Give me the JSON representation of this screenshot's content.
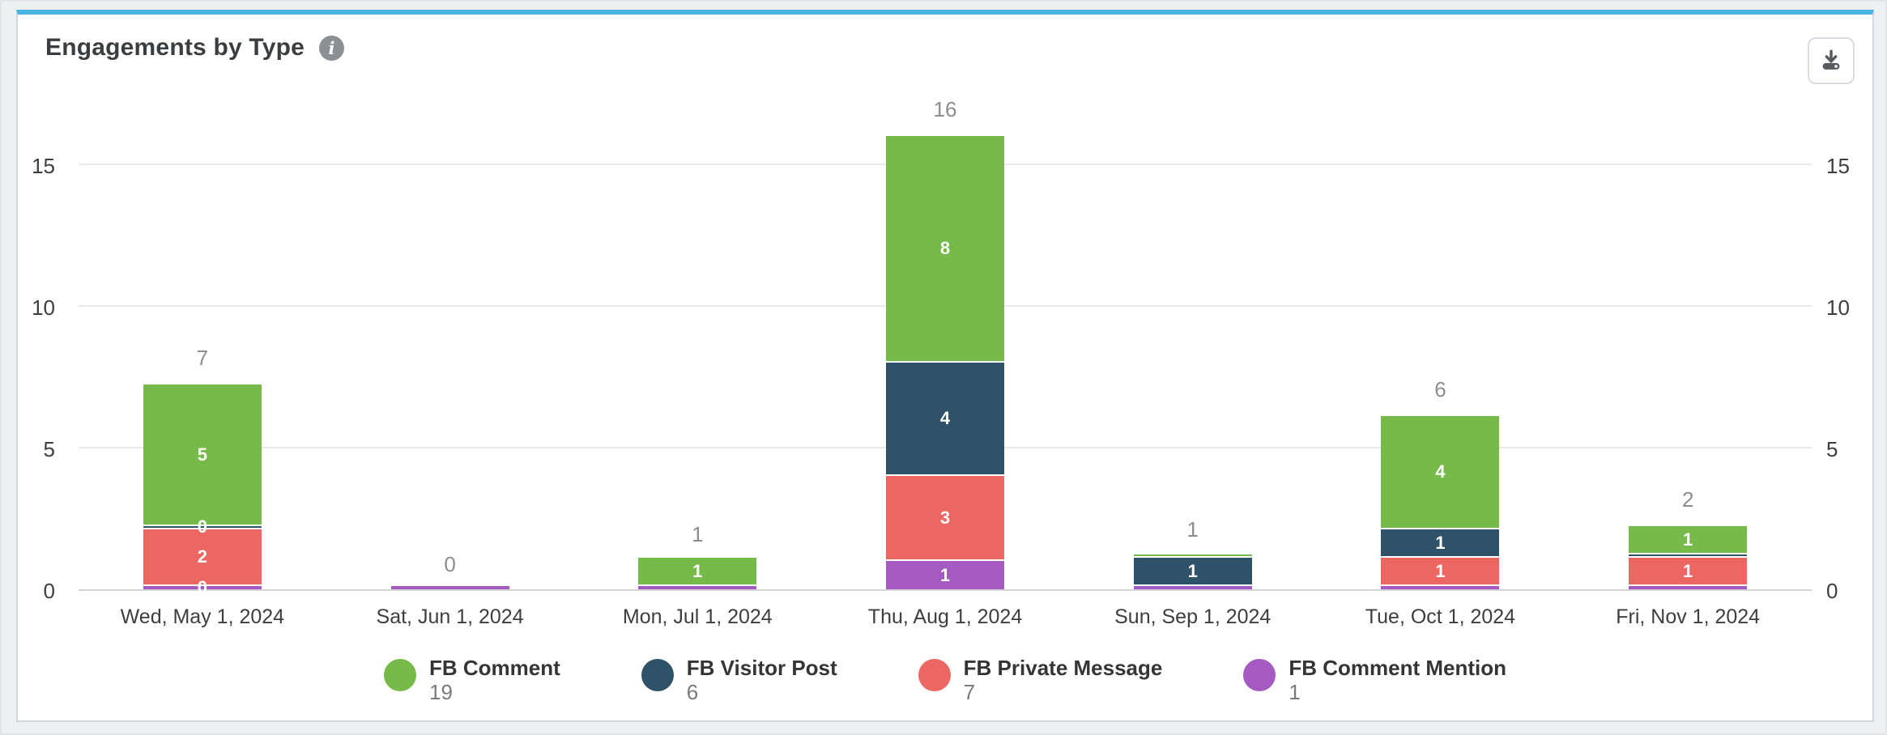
{
  "header": {
    "title": "Engagements by Type",
    "info_icon_glyph": "i"
  },
  "icons": {
    "info": "info-icon",
    "download": "download-icon"
  },
  "colors": {
    "accent_top": "#47b6e5",
    "panel_border": "#d3d7dd",
    "page_background": "#eef1f2",
    "gridline": "#e9e9ec",
    "axis_line": "#d4d4d8",
    "total_label": "#8d8d8d"
  },
  "chart_data": {
    "type": "bar",
    "stacked": true,
    "title": "Engagements by Type",
    "xlabel": "",
    "ylabel": "",
    "ylim": [
      0,
      17.5
    ],
    "y_ticks": [
      0,
      5,
      10,
      15
    ],
    "grid": true,
    "dual_y_axis": true,
    "legend_position": "bottom",
    "categories": [
      "Wed, May 1, 2024",
      "Sat, Jun 1, 2024",
      "Mon, Jul 1, 2024",
      "Thu, Aug 1, 2024",
      "Sun, Sep 1, 2024",
      "Tue, Oct 1, 2024",
      "Fri, Nov 1, 2024"
    ],
    "series": [
      {
        "name": "FB Comment",
        "color": "#76ba49",
        "total": 19,
        "values": [
          5,
          0,
          1,
          8,
          0,
          4,
          1
        ]
      },
      {
        "name": "FB Visitor Post",
        "color": "#2e5267",
        "total": 6,
        "values": [
          0,
          0,
          0,
          4,
          1,
          1,
          0
        ]
      },
      {
        "name": "FB Private Message",
        "color": "#ec6662",
        "total": 7,
        "values": [
          2,
          0,
          0,
          3,
          0,
          1,
          1
        ]
      },
      {
        "name": "FB Comment Mention",
        "color": "#a45ac1",
        "total": 1,
        "values": [
          0,
          0,
          0,
          1,
          0,
          0,
          0
        ]
      }
    ],
    "bar_totals": [
      7,
      0,
      1,
      16,
      1,
      6,
      2
    ],
    "bars": [
      {
        "category": "Wed, May 1, 2024",
        "total": "7",
        "segments": [
          {
            "series": "FB Comment Mention",
            "value": 0,
            "label": "0"
          },
          {
            "series": "FB Private Message",
            "value": 2,
            "label": "2"
          },
          {
            "series": "FB Visitor Post",
            "value": 0,
            "label": "0"
          },
          {
            "series": "FB Comment",
            "value": 5,
            "label": "5"
          }
        ]
      },
      {
        "category": "Sat, Jun 1, 2024",
        "total": "0",
        "segments": [
          {
            "series": "FB Comment Mention",
            "value": 0,
            "label": null
          }
        ]
      },
      {
        "category": "Mon, Jul 1, 2024",
        "total": "1",
        "segments": [
          {
            "series": "FB Comment Mention",
            "value": 0,
            "label": null
          },
          {
            "series": "FB Comment",
            "value": 1,
            "label": "1"
          }
        ]
      },
      {
        "category": "Thu, Aug 1, 2024",
        "total": "16",
        "segments": [
          {
            "series": "FB Comment Mention",
            "value": 1,
            "label": "1"
          },
          {
            "series": "FB Private Message",
            "value": 3,
            "label": "3"
          },
          {
            "series": "FB Visitor Post",
            "value": 4,
            "label": "4"
          },
          {
            "series": "FB Comment",
            "value": 8,
            "label": "8"
          }
        ]
      },
      {
        "category": "Sun, Sep 1, 2024",
        "total": "1",
        "segments": [
          {
            "series": "FB Comment Mention",
            "value": 0,
            "label": null
          },
          {
            "series": "FB Visitor Post",
            "value": 1,
            "label": "1"
          },
          {
            "series": "FB Comment",
            "value": 0,
            "label": null
          }
        ]
      },
      {
        "category": "Tue, Oct 1, 2024",
        "total": "6",
        "segments": [
          {
            "series": "FB Comment Mention",
            "value": 0,
            "label": null
          },
          {
            "series": "FB Private Message",
            "value": 1,
            "label": "1"
          },
          {
            "series": "FB Visitor Post",
            "value": 1,
            "label": "1"
          },
          {
            "series": "FB Comment",
            "value": 4,
            "label": "4"
          }
        ]
      },
      {
        "category": "Fri, Nov 1, 2024",
        "total": "2",
        "segments": [
          {
            "series": "FB Comment Mention",
            "value": 0,
            "label": null
          },
          {
            "series": "FB Private Message",
            "value": 1,
            "label": "1"
          },
          {
            "series": "FB Visitor Post",
            "value": 0,
            "label": null
          },
          {
            "series": "FB Comment",
            "value": 1,
            "label": "1"
          }
        ]
      }
    ],
    "legend": [
      {
        "label": "FB Comment",
        "count": "19"
      },
      {
        "label": "FB Visitor Post",
        "count": "6"
      },
      {
        "label": "FB Private Message",
        "count": "7"
      },
      {
        "label": "FB Comment Mention",
        "count": "1"
      }
    ]
  }
}
